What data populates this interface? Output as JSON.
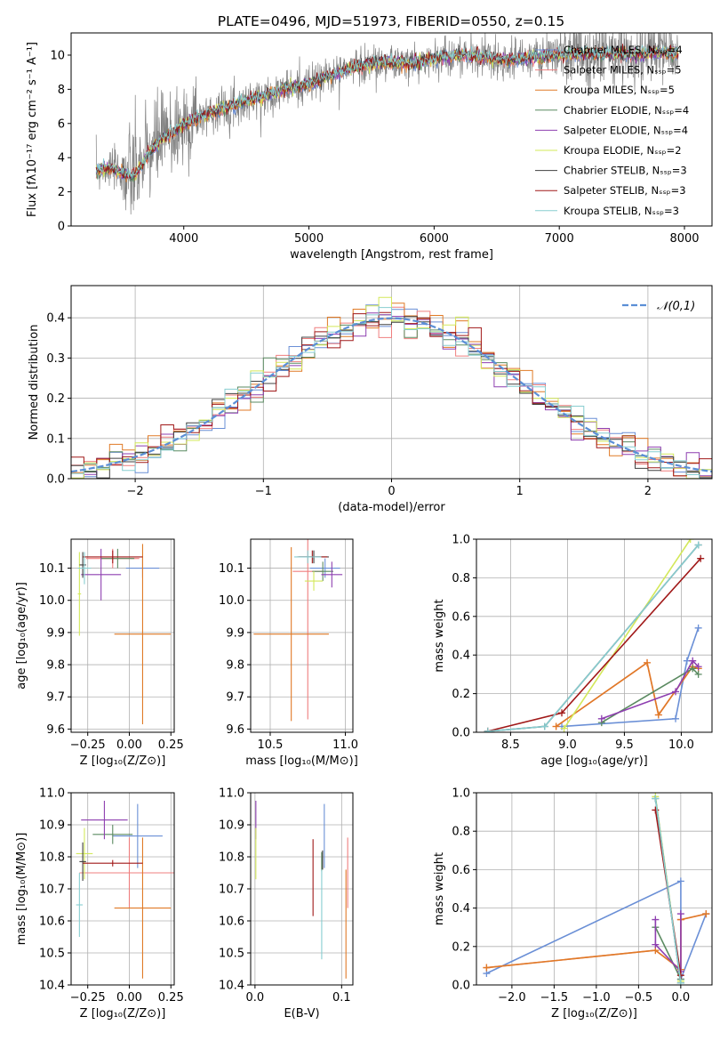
{
  "figure_title": "PLATE=0496, MJD=51973, FIBERID=0550, z=0.15",
  "colors": {
    "chabrier_miles": "#6a8fd6",
    "salpeter_miles": "#ef7f7f",
    "kroupa_miles": "#e07a26",
    "chabrier_elodie": "#5a8a60",
    "salpeter_elodie": "#8e3fb0",
    "kroupa_elodie": "#d3e85a",
    "chabrier_stelib": "#404040",
    "salpeter_stelib": "#a01818",
    "kroupa_stelib": "#87cdd0",
    "data": "#808080",
    "gauss": "#5b8fd6"
  },
  "legend_spectrum": [
    {
      "label": "Chabrier MILES, Nₛₛₚ=4",
      "color_key": "chabrier_miles"
    },
    {
      "label": "Salpeter MILES, Nₛₛₚ=5",
      "color_key": "salpeter_miles"
    },
    {
      "label": "Kroupa MILES, Nₛₛₚ=5",
      "color_key": "kroupa_miles"
    },
    {
      "label": "Chabrier ELODIE, Nₛₛₚ=4",
      "color_key": "chabrier_elodie"
    },
    {
      "label": "Salpeter ELODIE, Nₛₛₚ=4",
      "color_key": "salpeter_elodie"
    },
    {
      "label": "Kroupa ELODIE, Nₛₛₚ=2",
      "color_key": "kroupa_elodie"
    },
    {
      "label": "Chabrier STELIB, Nₛₛₚ=3",
      "color_key": "chabrier_stelib"
    },
    {
      "label": "Salpeter STELIB, Nₛₛₚ=3",
      "color_key": "salpeter_stelib"
    },
    {
      "label": "Kroupa STELIB, Nₛₛₚ=3",
      "color_key": "kroupa_stelib"
    }
  ],
  "chart_data": [
    {
      "id": "spectrum",
      "type": "line",
      "title": "PLATE=0496, MJD=51973, FIBERID=0550, z=0.15",
      "xlabel": "wavelength [Angstrom, rest frame]",
      "ylabel": "Flux [fλ10⁻¹⁷ erg cm⁻² s⁻¹ A⁻¹]",
      "xlim": [
        3100,
        8220
      ],
      "ylim": [
        0,
        11.3
      ],
      "xticks": [
        4000,
        5000,
        6000,
        7000,
        8000
      ],
      "yticks": [
        0,
        2,
        4,
        6,
        8,
        10
      ],
      "x": [
        3300,
        3400,
        3500,
        3600,
        3700,
        3800,
        3900,
        4000,
        4200,
        4400,
        4600,
        4800,
        5000,
        5200,
        5400,
        5600,
        5800,
        6000,
        6200,
        6400,
        6600,
        6800,
        7000,
        7200,
        7400,
        7600,
        7800,
        7950
      ],
      "values": [
        3.2,
        3.4,
        3.1,
        2.9,
        4.0,
        5.0,
        5.4,
        5.9,
        6.6,
        7.1,
        7.5,
        8.0,
        8.3,
        8.9,
        9.4,
        9.6,
        9.5,
        9.8,
        10.0,
        9.9,
        9.7,
        9.9,
        10.0,
        10.1,
        10.1,
        10.0,
        10.2,
        10.1
      ],
      "grid": false
    },
    {
      "id": "residuals",
      "type": "histogram",
      "xlabel": "(data-model)/error",
      "ylabel": "Normed distribution",
      "xlim": [
        -2.5,
        2.5
      ],
      "ylim": [
        0,
        0.48
      ],
      "xticks": [
        -2,
        -1,
        0,
        1,
        2
      ],
      "xticklabels": [
        "−2",
        "−1",
        "0",
        "1",
        "2"
      ],
      "yticks": [
        0.0,
        0.1,
        0.2,
        0.3,
        0.4
      ],
      "yticklabels": [
        "0.0",
        "0.1",
        "0.2",
        "0.3",
        "0.4"
      ],
      "bin_width": 0.1,
      "legend": "𝒩(0,1)",
      "grid": true
    },
    {
      "id": "z-age",
      "type": "scatter",
      "xlabel": "Z [log₁₀(Z/Z⊙)]",
      "ylabel": "age  [log₁₀(age/yr)]",
      "xlim": [
        -0.35,
        0.27
      ],
      "ylim": [
        9.59,
        10.19
      ],
      "xticks": [
        -0.25,
        0.0,
        0.25
      ],
      "xticklabels": [
        "−0.25",
        "0.00",
        "0.25"
      ],
      "yticks": [
        9.6,
        9.7,
        9.8,
        9.9,
        10.0,
        10.1
      ],
      "yticklabels": [
        "9.6",
        "9.7",
        "9.8",
        "9.9",
        "10.0",
        "10.1"
      ],
      "points": [
        {
          "x": 0.08,
          "y": 10.1,
          "xerr": 0.1,
          "yerr": 0.03,
          "c": "chabrier_miles"
        },
        {
          "x": -0.1,
          "y": 10.13,
          "xerr": 0.16,
          "yerr": 0.03,
          "c": "salpeter_miles"
        },
        {
          "x": 0.08,
          "y": 9.895,
          "xerr": 0.17,
          "yerr": 0.28,
          "c": "kroupa_miles"
        },
        {
          "x": -0.07,
          "y": 10.13,
          "xerr": 0.1,
          "yerr": 0.03,
          "c": "chabrier_elodie"
        },
        {
          "x": -0.17,
          "y": 10.08,
          "xerr": 0.12,
          "yerr": 0.08,
          "c": "salpeter_elodie"
        },
        {
          "x": -0.3,
          "y": 10.02,
          "xerr": 0.01,
          "yerr": 0.13,
          "c": "kroupa_elodie"
        },
        {
          "x": -0.28,
          "y": 10.11,
          "xerr": 0.02,
          "yerr": 0.04,
          "c": "chabrier_stelib"
        },
        {
          "x": -0.1,
          "y": 10.135,
          "xerr": 0.18,
          "yerr": 0.02,
          "c": "salpeter_stelib"
        },
        {
          "x": -0.27,
          "y": 10.1,
          "xerr": 0.04,
          "yerr": 0.05,
          "c": "kroupa_stelib"
        }
      ],
      "grid": true
    },
    {
      "id": "mass-age",
      "type": "scatter",
      "xlabel": "mass [log₁₀(M/M⊙)]",
      "ylabel": "",
      "xlim": [
        10.37,
        11.05
      ],
      "ylim": [
        9.59,
        10.19
      ],
      "xticks": [
        10.5,
        11.0
      ],
      "xticklabels": [
        "10.5",
        "11.0"
      ],
      "yticks": [
        9.6,
        9.7,
        9.8,
        9.9,
        10.0,
        10.1
      ],
      "yticklabels": [
        "9.6",
        "9.7",
        "9.8",
        "9.9",
        "10.0",
        "10.1"
      ],
      "points": [
        {
          "x": 10.865,
          "y": 10.1,
          "xerr": 0.1,
          "yerr": 0.03,
          "c": "chabrier_miles"
        },
        {
          "x": 10.75,
          "y": 10.09,
          "xerr": 0.1,
          "yerr": 0.46,
          "c": "salpeter_miles"
        },
        {
          "x": 10.64,
          "y": 9.895,
          "xerr": 0.25,
          "yerr": 0.27,
          "c": "kroupa_miles"
        },
        {
          "x": 10.85,
          "y": 10.09,
          "xerr": 0.07,
          "yerr": 0.03,
          "c": "chabrier_elodie"
        },
        {
          "x": 10.91,
          "y": 10.08,
          "xerr": 0.07,
          "yerr": 0.04,
          "c": "salpeter_elodie"
        },
        {
          "x": 10.79,
          "y": 10.06,
          "xerr": 0.06,
          "yerr": 0.03,
          "c": "kroupa_elodie"
        },
        {
          "x": 10.79,
          "y": 10.135,
          "xerr": 0.1,
          "yerr": 0.02,
          "c": "chabrier_stelib"
        },
        {
          "x": 10.78,
          "y": 10.135,
          "xerr": 0.1,
          "yerr": 0.02,
          "c": "salpeter_stelib"
        },
        {
          "x": 10.75,
          "y": 10.135,
          "xerr": 0.09,
          "yerr": 0.02,
          "c": "kroupa_stelib"
        }
      ],
      "grid": true
    },
    {
      "id": "age-weight",
      "type": "line",
      "xlabel": "age  [log₁₀(age/yr)]",
      "ylabel": "mass weight",
      "xlim": [
        8.2,
        10.27
      ],
      "ylim": [
        0,
        1
      ],
      "xticks": [
        8.5,
        9.0,
        9.5,
        10.0
      ],
      "xticklabels": [
        "8.5",
        "9.0",
        "9.5",
        "10.0"
      ],
      "yticks": [
        0.0,
        0.2,
        0.4,
        0.6,
        0.8,
        1.0
      ],
      "yticklabels": [
        "0.0",
        "0.2",
        "0.4",
        "0.6",
        "0.8",
        "1.0"
      ],
      "series": [
        {
          "c": "chabrier_miles",
          "x": [
            8.95,
            9.95,
            10.05,
            10.15
          ],
          "y": [
            0.03,
            0.07,
            0.37,
            0.54
          ]
        },
        {
          "c": "salpeter_miles",
          "x": [
            8.9,
            9.7,
            9.8,
            10.1,
            10.15
          ],
          "y": [
            0.03,
            0.36,
            0.09,
            0.34,
            0.33
          ]
        },
        {
          "c": "kroupa_miles",
          "x": [
            8.9,
            9.7,
            9.8,
            10.1,
            10.15
          ],
          "y": [
            0.03,
            0.36,
            0.09,
            0.34,
            0.33
          ]
        },
        {
          "c": "chabrier_elodie",
          "x": [
            9.3,
            10.1,
            10.15
          ],
          "y": [
            0.05,
            0.33,
            0.3
          ]
        },
        {
          "c": "salpeter_elodie",
          "x": [
            9.3,
            9.95,
            10.1,
            10.15
          ],
          "y": [
            0.07,
            0.21,
            0.37,
            0.34
          ]
        },
        {
          "c": "kroupa_elodie",
          "x": [
            8.97,
            10.08
          ],
          "y": [
            0.02,
            1.0
          ]
        },
        {
          "c": "chabrier_stelib",
          "x": [
            8.3,
            8.8,
            10.15
          ],
          "y": [
            0.005,
            0.03,
            0.97
          ]
        },
        {
          "c": "salpeter_stelib",
          "x": [
            8.3,
            8.95,
            10.17
          ],
          "y": [
            0.005,
            0.1,
            0.9
          ]
        },
        {
          "c": "kroupa_stelib",
          "x": [
            8.3,
            8.8,
            10.15
          ],
          "y": [
            0.005,
            0.03,
            0.97
          ]
        }
      ],
      "grid": true
    },
    {
      "id": "z-mass",
      "type": "scatter",
      "xlabel": "Z [log₁₀(Z/Z⊙)]",
      "ylabel": "mass [log₁₀(M/M⊙)]",
      "xlim": [
        -0.35,
        0.27
      ],
      "ylim": [
        10.4,
        11.0
      ],
      "xticks": [
        -0.25,
        0.0,
        0.25
      ],
      "xticklabels": [
        "−0.25",
        "0.00",
        "0.25"
      ],
      "yticks": [
        10.4,
        10.5,
        10.6,
        10.7,
        10.8,
        10.9,
        11.0
      ],
      "yticklabels": [
        "10.4",
        "10.5",
        "10.6",
        "10.7",
        "10.8",
        "10.9",
        "11.0"
      ],
      "points": [
        {
          "x": 0.05,
          "y": 10.865,
          "xerr": 0.15,
          "yerr": 0.1,
          "c": "chabrier_miles"
        },
        {
          "x": 0.0,
          "y": 10.75,
          "xerr": 0.3,
          "yerr": 0.11,
          "c": "salpeter_miles"
        },
        {
          "x": 0.08,
          "y": 10.64,
          "xerr": 0.17,
          "yerr": 0.22,
          "c": "kroupa_miles"
        },
        {
          "x": -0.1,
          "y": 10.87,
          "xerr": 0.12,
          "yerr": 0.03,
          "c": "chabrier_elodie"
        },
        {
          "x": -0.15,
          "y": 10.915,
          "xerr": 0.14,
          "yerr": 0.06,
          "c": "salpeter_elodie"
        },
        {
          "x": -0.27,
          "y": 10.81,
          "xerr": 0.05,
          "yerr": 0.08,
          "c": "kroupa_elodie"
        },
        {
          "x": -0.28,
          "y": 10.785,
          "xerr": 0.02,
          "yerr": 0.06,
          "c": "chabrier_stelib"
        },
        {
          "x": -0.1,
          "y": 10.78,
          "xerr": 0.18,
          "yerr": 0.01,
          "c": "salpeter_stelib"
        },
        {
          "x": -0.3,
          "y": 10.65,
          "xerr": 0.02,
          "yerr": 0.1,
          "c": "kroupa_stelib"
        }
      ],
      "grid": true
    },
    {
      "id": "ebv-mass",
      "type": "scatter",
      "xlabel": "E(B-V)",
      "ylabel": "",
      "xlim": [
        -0.005,
        0.113
      ],
      "ylim": [
        10.4,
        11.0
      ],
      "xticks": [
        0.0,
        0.1
      ],
      "xticklabels": [
        "0.0",
        "0.1"
      ],
      "yticks": [
        10.4,
        10.5,
        10.6,
        10.7,
        10.8,
        10.9,
        11.0
      ],
      "yticklabels": [
        "10.4",
        "10.5",
        "10.6",
        "10.7",
        "10.8",
        "10.9",
        "11.0"
      ],
      "points": [
        {
          "x": 0.08,
          "y": 10.865,
          "xerr": 0,
          "yerr": 0.1,
          "c": "chabrier_miles"
        },
        {
          "x": 0.107,
          "y": 10.75,
          "xerr": 0,
          "yerr": 0.11,
          "c": "salpeter_miles"
        },
        {
          "x": 0.105,
          "y": 10.59,
          "xerr": 0,
          "yerr": 0.17,
          "c": "kroupa_miles"
        },
        {
          "x": 0.077,
          "y": 10.785,
          "xerr": 0,
          "yerr": 0.03,
          "c": "chabrier_elodie"
        },
        {
          "x": 0.001,
          "y": 10.915,
          "xerr": 0,
          "yerr": 0.06,
          "c": "salpeter_elodie"
        },
        {
          "x": 0.001,
          "y": 10.81,
          "xerr": 0,
          "yerr": 0.08,
          "c": "kroupa_elodie"
        },
        {
          "x": 0.078,
          "y": 10.79,
          "xerr": 0,
          "yerr": 0.03,
          "c": "chabrier_stelib"
        },
        {
          "x": 0.067,
          "y": 10.735,
          "xerr": 0,
          "yerr": 0.12,
          "c": "salpeter_stelib"
        },
        {
          "x": 0.077,
          "y": 10.62,
          "xerr": 0,
          "yerr": 0.14,
          "c": "kroupa_stelib"
        }
      ],
      "grid": true
    },
    {
      "id": "z-weight",
      "type": "line",
      "xlabel": "Z [log₁₀(Z/Z⊙)]",
      "ylabel": "mass weight",
      "xlim": [
        -2.42,
        0.37
      ],
      "ylim": [
        0,
        1
      ],
      "xticks": [
        -2.0,
        -1.5,
        -1.0,
        -0.5,
        0.0
      ],
      "xticklabels": [
        "−2.0",
        "−1.5",
        "−1.0",
        "−0.5",
        "0.0"
      ],
      "yticks": [
        0.0,
        0.2,
        0.4,
        0.6,
        0.8,
        1.0
      ],
      "yticklabels": [
        "0.0",
        "0.2",
        "0.4",
        "0.6",
        "0.8",
        "1.0"
      ],
      "series": [
        {
          "c": "chabrier_miles",
          "x": [
            -2.3,
            0.0,
            0.0,
            0.3
          ],
          "y": [
            0.06,
            0.54,
            0.03,
            0.37
          ]
        },
        {
          "c": "salpeter_miles",
          "x": [
            -2.3,
            -0.3,
            0.0,
            0.0,
            0.3
          ],
          "y": [
            0.09,
            0.18,
            0.08,
            0.34,
            0.37
          ]
        },
        {
          "c": "kroupa_miles",
          "x": [
            -2.3,
            -0.3,
            0.0,
            0.0,
            0.3
          ],
          "y": [
            0.09,
            0.18,
            0.08,
            0.34,
            0.37
          ]
        },
        {
          "c": "chabrier_elodie",
          "x": [
            -0.3,
            0.0
          ],
          "y": [
            0.3,
            0.03
          ]
        },
        {
          "c": "salpeter_elodie",
          "x": [
            -0.3,
            -0.3,
            0.0,
            0.0
          ],
          "y": [
            0.34,
            0.21,
            0.07,
            0.37
          ]
        },
        {
          "c": "kroupa_elodie",
          "x": [
            -0.3,
            0.0
          ],
          "y": [
            0.98,
            0.02
          ]
        },
        {
          "c": "chabrier_stelib",
          "x": [
            -0.3,
            0.0
          ],
          "y": [
            0.97,
            0.01
          ]
        },
        {
          "c": "salpeter_stelib",
          "x": [
            -0.3,
            0.0
          ],
          "y": [
            0.91,
            0.05
          ]
        },
        {
          "c": "kroupa_stelib",
          "x": [
            -0.3,
            0.0
          ],
          "y": [
            0.97,
            0.01
          ]
        }
      ],
      "grid": true
    }
  ]
}
